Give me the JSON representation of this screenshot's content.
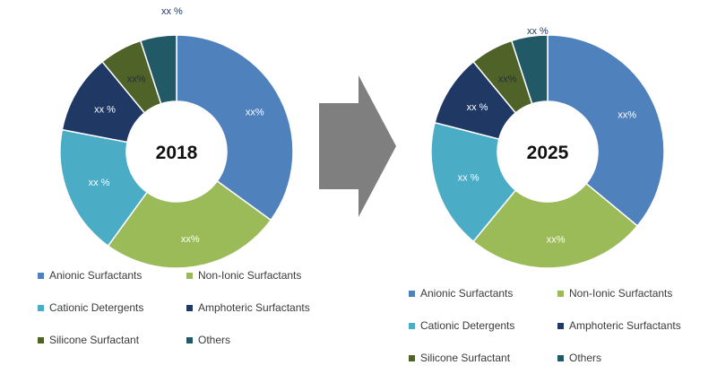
{
  "chart_data": [
    {
      "type": "donut",
      "center_label": "2018",
      "slices": [
        {
          "label": "Anionic Surfactants",
          "data_label": "xx%",
          "value": 35,
          "color": "#4f81bd"
        },
        {
          "label": "Non-Ionic Surfactants",
          "data_label": "xx%",
          "value": 25,
          "color": "#9bbb59"
        },
        {
          "label": "Cationic Detergents",
          "data_label": "xx %",
          "value": 18,
          "color": "#4bacc6"
        },
        {
          "label": "Amphoteric Surfactants",
          "data_label": "xx %",
          "value": 11,
          "color": "#1f3864"
        },
        {
          "label": "Silicone Surfactant",
          "data_label": "xx%",
          "value": 6,
          "color": "#4f6228"
        },
        {
          "label": "Others",
          "data_label": "xx %",
          "value": 5,
          "color": "#215967"
        }
      ]
    },
    {
      "type": "donut",
      "center_label": "2025",
      "slices": [
        {
          "label": "Anionic Surfactants",
          "data_label": "xx%",
          "value": 36,
          "color": "#4f81bd"
        },
        {
          "label": "Non-Ionic Surfactants",
          "data_label": "xx%",
          "value": 25,
          "color": "#9bbb59"
        },
        {
          "label": "Cationic Detergents",
          "data_label": "xx %",
          "value": 18,
          "color": "#4bacc6"
        },
        {
          "label": "Amphoteric Surfactants",
          "data_label": "xx %",
          "value": 10,
          "color": "#1f3864"
        },
        {
          "label": "Silicone Surfactant",
          "data_label": "xx%",
          "value": 6,
          "color": "#4f6228"
        },
        {
          "label": "Others",
          "data_label": "xx %",
          "value": 5,
          "color": "#215967"
        }
      ]
    }
  ],
  "arrow_color": "#7f7f7f"
}
